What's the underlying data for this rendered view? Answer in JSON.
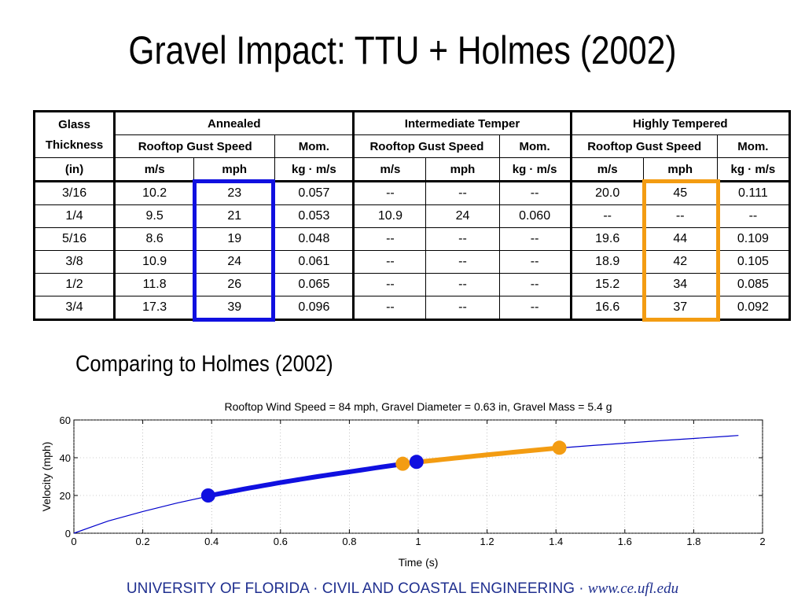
{
  "title": "Gravel Impact: TTU + Holmes (2002)",
  "table": {
    "header1": [
      "Glass Thickness",
      "Annealed",
      "Intermediate Temper",
      "Highly Tempered"
    ],
    "header2": [
      "Rooftop Gust Speed",
      "Mom.",
      "Rooftop Gust Speed",
      "Mom.",
      "Rooftop Gust Speed",
      "Mom."
    ],
    "header3": [
      "(in)",
      "m/s",
      "mph",
      "kg · m/s",
      "m/s",
      "mph",
      "kg · m/s",
      "m/s",
      "mph",
      "kg · m/s"
    ],
    "rows": [
      [
        "3/16",
        "10.2",
        "23",
        "0.057",
        "--",
        "--",
        "--",
        "20.0",
        "45",
        "0.111"
      ],
      [
        "1/4",
        "9.5",
        "21",
        "0.053",
        "10.9",
        "24",
        "0.060",
        "--",
        "--",
        "--"
      ],
      [
        "5/16",
        "8.6",
        "19",
        "0.048",
        "--",
        "--",
        "--",
        "19.6",
        "44",
        "0.109"
      ],
      [
        "3/8",
        "10.9",
        "24",
        "0.061",
        "--",
        "--",
        "--",
        "18.9",
        "42",
        "0.105"
      ],
      [
        "1/2",
        "11.8",
        "26",
        "0.065",
        "--",
        "--",
        "--",
        "15.2",
        "34",
        "0.085"
      ],
      [
        "3/4",
        "17.3",
        "39",
        "0.096",
        "--",
        "--",
        "--",
        "16.6",
        "37",
        "0.092"
      ]
    ],
    "highlight_colors": {
      "annealed_mph": "#1010e0",
      "tempered_mph": "#f39c12"
    }
  },
  "section_heading": "Comparing to Holmes (2002)",
  "chart_data": {
    "type": "line",
    "title": "Rooftop Wind Speed = 84 mph, Gravel Diameter = 0.63 in, Gravel Mass = 5.4 g",
    "xlabel": "Time (s)",
    "ylabel": "Velocity (mph)",
    "xlim": [
      0,
      2
    ],
    "ylim": [
      0,
      60
    ],
    "xticks": [
      0,
      0.2,
      0.4,
      0.6,
      0.8,
      1,
      1.2,
      1.4,
      1.6,
      1.8,
      2
    ],
    "yticks": [
      0,
      20,
      40,
      60
    ],
    "grid": true,
    "curve": {
      "color": "#0000cc",
      "x": [
        0,
        0.1,
        0.2,
        0.3,
        0.4,
        0.5,
        0.6,
        0.7,
        0.8,
        0.9,
        1.0,
        1.1,
        1.2,
        1.3,
        1.4,
        1.5,
        1.6,
        1.7,
        1.8,
        1.9,
        1.93
      ],
      "y": [
        0,
        6.5,
        11.5,
        16.0,
        20.0,
        24.0,
        27.5,
        30.5,
        33.0,
        35.5,
        37.8,
        39.8,
        41.7,
        43.4,
        45.0,
        46.4,
        47.7,
        49.0,
        50.2,
        51.4,
        51.8
      ]
    },
    "highlights": [
      {
        "color": "#1010e0",
        "x_start": 0.39,
        "x_end": 0.995,
        "y_start": 20,
        "y_end": 37.8
      },
      {
        "color": "#f39c12",
        "x_start": 0.955,
        "x_end": 1.41,
        "y_start": 36.8,
        "y_end": 45.3
      }
    ]
  },
  "footer": {
    "institution": "UNIVERSITY OF FLORIDA · CIVIL AND COASTAL ENGINEERING ·",
    "url": "www.ce.ufl.edu"
  }
}
